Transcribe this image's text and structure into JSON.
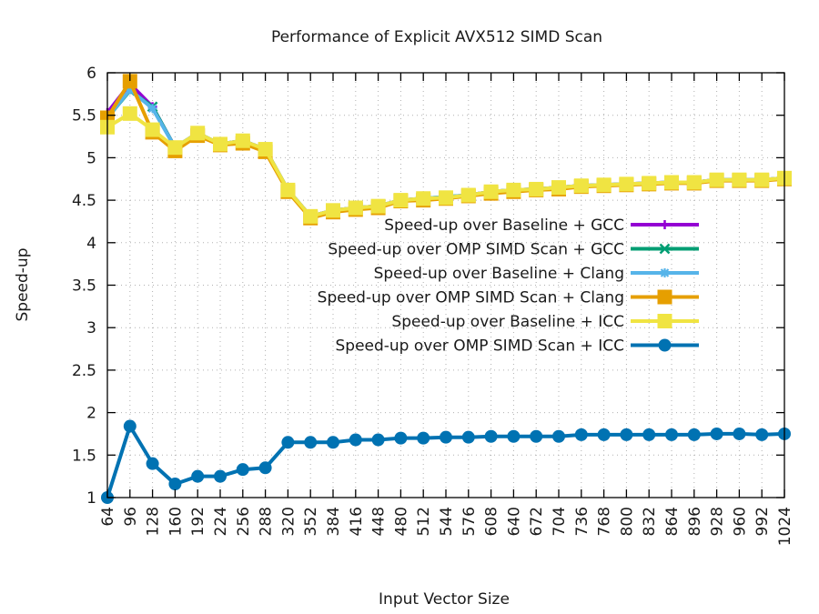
{
  "chart_data": {
    "type": "line",
    "title": "Performance of Explicit AVX512 SIMD Scan",
    "xlabel": "Input Vector Size",
    "ylabel": "Speed-up",
    "ylim": [
      1,
      6
    ],
    "xlim": [
      64,
      1024
    ],
    "grid": true,
    "legend_position": "center-right",
    "yticks": [
      "1",
      "1.5",
      "2",
      "2.5",
      "3",
      "3.5",
      "4",
      "4.5",
      "5",
      "5.5",
      "6"
    ],
    "x": [
      64,
      96,
      128,
      160,
      192,
      224,
      256,
      288,
      320,
      352,
      384,
      416,
      448,
      480,
      512,
      544,
      576,
      608,
      640,
      672,
      704,
      736,
      768,
      800,
      832,
      864,
      896,
      928,
      960,
      992,
      1024
    ],
    "xtick_labels": [
      "64",
      "96",
      "128",
      "160",
      "192",
      "224",
      "256",
      "288",
      "320",
      "352",
      "384",
      "416",
      "448",
      "480",
      "512",
      "544",
      "576",
      "608",
      "640",
      "672",
      "704",
      "736",
      "768",
      "800",
      "832",
      "864",
      "896",
      "928",
      "960",
      "992",
      "1024"
    ],
    "series": [
      {
        "name": "Speed-up over Baseline + GCC",
        "color": "#9400d3",
        "marker": "plus",
        "values": [
          5.53,
          5.87,
          5.6,
          5.12,
          5.29,
          5.16,
          5.2,
          5.1,
          4.62,
          4.31,
          4.38,
          4.41,
          4.43,
          4.5,
          4.52,
          4.53,
          4.56,
          4.6,
          4.62,
          4.63,
          4.65,
          4.67,
          4.68,
          4.69,
          4.7,
          4.71,
          4.71,
          4.74,
          4.74,
          4.74,
          4.76
        ]
      },
      {
        "name": "Speed-up over OMP SIMD Scan + GCC",
        "color": "#009e73",
        "marker": "cross",
        "values": [
          5.47,
          5.79,
          5.6,
          5.12,
          5.29,
          5.16,
          5.2,
          5.1,
          4.62,
          4.31,
          4.38,
          4.41,
          4.43,
          4.5,
          4.52,
          4.54,
          4.56,
          4.6,
          4.62,
          4.63,
          4.65,
          4.67,
          4.68,
          4.69,
          4.7,
          4.71,
          4.71,
          4.74,
          4.74,
          4.74,
          4.76
        ]
      },
      {
        "name": "Speed-up over Baseline + Clang",
        "color": "#56b4e9",
        "marker": "star",
        "values": [
          5.47,
          5.8,
          5.58,
          5.12,
          5.29,
          5.16,
          5.2,
          5.1,
          4.62,
          4.31,
          4.38,
          4.41,
          4.43,
          4.5,
          4.52,
          4.54,
          4.56,
          4.6,
          4.62,
          4.63,
          4.65,
          4.67,
          4.68,
          4.69,
          4.7,
          4.71,
          4.71,
          4.74,
          4.74,
          4.74,
          4.76
        ]
      },
      {
        "name": "Speed-up over OMP SIMD Scan + Clang",
        "color": "#e69f00",
        "marker": "square",
        "values": [
          5.47,
          5.9,
          5.3,
          5.08,
          5.26,
          5.15,
          5.17,
          5.07,
          4.6,
          4.29,
          4.36,
          4.39,
          4.41,
          4.49,
          4.5,
          4.52,
          4.55,
          4.58,
          4.6,
          4.62,
          4.63,
          4.66,
          4.67,
          4.68,
          4.69,
          4.7,
          4.7,
          4.73,
          4.73,
          4.73,
          4.75
        ]
      },
      {
        "name": "Speed-up over Baseline + ICC",
        "color": "#f0e442",
        "marker": "square",
        "values": [
          5.36,
          5.52,
          5.33,
          5.12,
          5.29,
          5.16,
          5.2,
          5.1,
          4.62,
          4.31,
          4.38,
          4.41,
          4.43,
          4.5,
          4.52,
          4.53,
          4.56,
          4.6,
          4.62,
          4.63,
          4.65,
          4.67,
          4.68,
          4.69,
          4.7,
          4.71,
          4.71,
          4.74,
          4.74,
          4.74,
          4.76
        ]
      },
      {
        "name": "Speed-up over OMP SIMD Scan + ICC",
        "color": "#0072b2",
        "marker": "circle",
        "values": [
          1.0,
          1.84,
          1.4,
          1.16,
          1.25,
          1.25,
          1.33,
          1.35,
          1.65,
          1.65,
          1.65,
          1.68,
          1.68,
          1.7,
          1.7,
          1.71,
          1.71,
          1.72,
          1.72,
          1.72,
          1.72,
          1.74,
          1.74,
          1.74,
          1.74,
          1.74,
          1.74,
          1.75,
          1.75,
          1.74,
          1.75
        ]
      }
    ]
  }
}
